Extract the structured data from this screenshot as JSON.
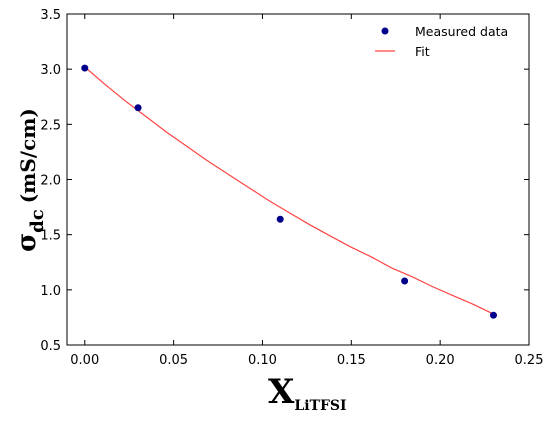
{
  "chart_data": {
    "type": "scatter",
    "title": "",
    "xlabel": {
      "main": "X",
      "sub": "LiTFSI"
    },
    "ylabel": {
      "main": "σ",
      "sub": "dc",
      "unit": "(mS/cm)"
    },
    "xlim": [
      -0.01,
      0.25
    ],
    "ylim": [
      0.5,
      3.5
    ],
    "x_ticks": [
      0.0,
      0.05,
      0.1,
      0.15,
      0.2,
      0.25
    ],
    "x_tick_labels": [
      "0.00",
      "0.05",
      "0.10",
      "0.15",
      "0.20",
      "0.25"
    ],
    "y_ticks": [
      0.5,
      1.0,
      1.5,
      2.0,
      2.5,
      3.0,
      3.5
    ],
    "y_tick_labels": [
      "0.5",
      "1.0",
      "1.5",
      "2.0",
      "2.5",
      "3.0",
      "3.5"
    ],
    "grid": false,
    "legend": "top-right",
    "series": [
      {
        "name": "Measured data",
        "kind": "scatter",
        "color": "#00008b",
        "x": [
          0.0,
          0.03,
          0.11,
          0.18,
          0.23
        ],
        "y": [
          3.01,
          2.65,
          1.64,
          1.08,
          0.77
        ]
      },
      {
        "name": "Fit",
        "kind": "line",
        "color": "#ff4444",
        "x": [
          0.0,
          0.0115,
          0.023,
          0.0345,
          0.046,
          0.0575,
          0.069,
          0.0805,
          0.092,
          0.1035,
          0.115,
          0.1265,
          0.138,
          0.1495,
          0.161,
          0.1725,
          0.184,
          0.1955,
          0.207,
          0.2185,
          0.23
        ],
        "y": [
          3.02,
          2.86,
          2.71,
          2.57,
          2.43,
          2.3,
          2.17,
          2.05,
          1.93,
          1.81,
          1.7,
          1.59,
          1.49,
          1.39,
          1.3,
          1.2,
          1.12,
          1.03,
          0.95,
          0.87,
          0.78
        ]
      }
    ]
  }
}
